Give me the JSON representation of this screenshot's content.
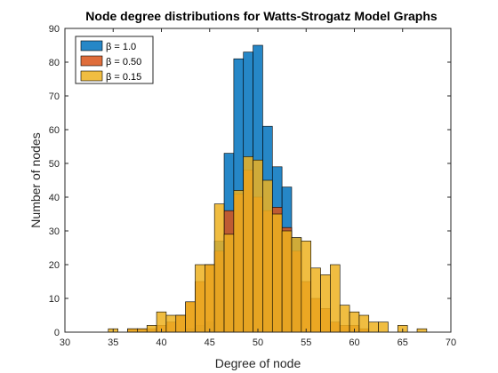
{
  "chart_data": {
    "type": "bar",
    "title": "Node degree distributions for Watts-Strogatz Model Graphs",
    "xlabel": "Degree of node",
    "ylabel": "Number of nodes",
    "xlim": [
      30,
      70
    ],
    "ylim": [
      0,
      90
    ],
    "xticks": [
      30,
      35,
      40,
      45,
      50,
      55,
      60,
      65,
      70
    ],
    "yticks": [
      0,
      10,
      20,
      30,
      40,
      50,
      60,
      70,
      80,
      90
    ],
    "bin_width": 1,
    "grid": false,
    "legend_position": "top-left",
    "series": [
      {
        "name": "β = 1.0",
        "color": "#0072BD",
        "x": [
          43,
          44,
          45,
          46,
          47,
          48,
          49,
          50,
          51,
          52,
          53,
          54
        ],
        "values": [
          1,
          2,
          3,
          27,
          53,
          81,
          83,
          85,
          61,
          49,
          43,
          28
        ]
      },
      {
        "name": "β = 0.50",
        "color": "#D95319",
        "x": [
          37,
          38,
          39,
          40,
          41,
          42,
          43,
          44,
          45,
          46,
          47,
          48,
          49,
          50,
          51,
          52,
          53,
          54,
          55,
          56,
          57,
          58,
          59,
          60,
          61
        ],
        "values": [
          1,
          1,
          1,
          2,
          3,
          5,
          9,
          15,
          20,
          24,
          36,
          41,
          48,
          40,
          36,
          37,
          31,
          24,
          15,
          10,
          7,
          3,
          2,
          2,
          1
        ]
      },
      {
        "name": "β = 0.15",
        "color": "#EDB120",
        "x": [
          35,
          36,
          37,
          38,
          39,
          40,
          41,
          42,
          43,
          44,
          45,
          46,
          47,
          48,
          49,
          50,
          51,
          52,
          53,
          54,
          55,
          56,
          57,
          58,
          59,
          60,
          61,
          62,
          63,
          64,
          65,
          66,
          67
        ],
        "values": [
          1,
          0,
          1,
          1,
          2,
          6,
          5,
          5,
          9,
          20,
          20,
          38,
          29,
          42,
          52,
          51,
          45,
          35,
          30,
          28,
          27,
          19,
          17,
          20,
          8,
          6,
          5,
          3,
          3,
          0,
          2,
          0,
          1
        ]
      }
    ]
  }
}
